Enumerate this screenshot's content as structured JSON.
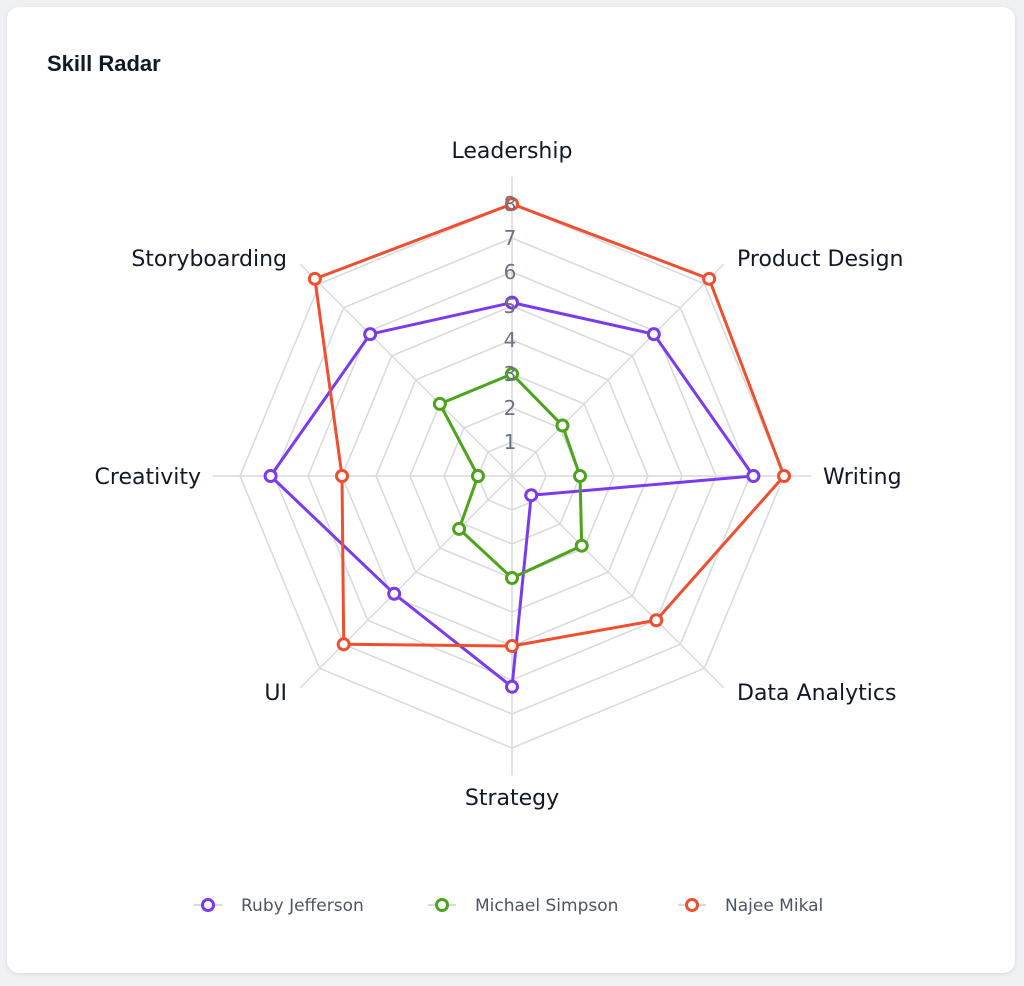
{
  "card": {
    "title": "Skill Radar"
  },
  "chart_data": {
    "type": "radar",
    "title": "",
    "axes": [
      "Leadership",
      "Product Design",
      "Writing",
      "Data Analytics",
      "Strategy",
      "UI",
      "Creativity",
      "Storyboarding"
    ],
    "rlim": [
      0,
      8
    ],
    "ticks": [
      1,
      2,
      3,
      4,
      5,
      6,
      7,
      8
    ],
    "grid": true,
    "legend_position": "bottom",
    "series": [
      {
        "name": "Ruby Jefferson",
        "color": "#7c3aed",
        "values": [
          5.1,
          5.9,
          7.1,
          0.8,
          6.2,
          4.9,
          7.1,
          5.9
        ]
      },
      {
        "name": "Michael Simpson",
        "color": "#4ca31c",
        "values": [
          3.0,
          2.1,
          2.0,
          2.9,
          3.0,
          2.2,
          1.0,
          3.0
        ]
      },
      {
        "name": "Najee Mikal",
        "color": "#ef4f2f",
        "values": [
          8.0,
          8.2,
          8.0,
          6.0,
          5.0,
          7.0,
          5.0,
          8.2
        ]
      }
    ]
  }
}
